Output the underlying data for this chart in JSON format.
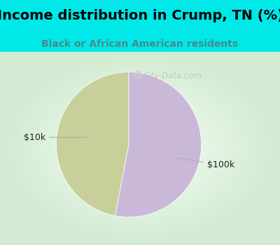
{
  "title": "Income distribution in Crump, TN (%)",
  "subtitle": "Black or African American residents",
  "title_color": "#000000",
  "subtitle_color": "#4a8a8a",
  "bg_color": "#00e8e8",
  "chart_bg_top_left": "#c8ecd8",
  "chart_bg_center": "#f0f8f0",
  "slices": [
    {
      "label": "$10k",
      "value": 47,
      "color": "#c8cf9a"
    },
    {
      "label": "$100k",
      "value": 53,
      "color": "#c9b8d8"
    }
  ],
  "watermark": "City-Data.com",
  "startangle": 90,
  "label_fontsize": 9,
  "title_fontsize": 14,
  "subtitle_fontsize": 10
}
